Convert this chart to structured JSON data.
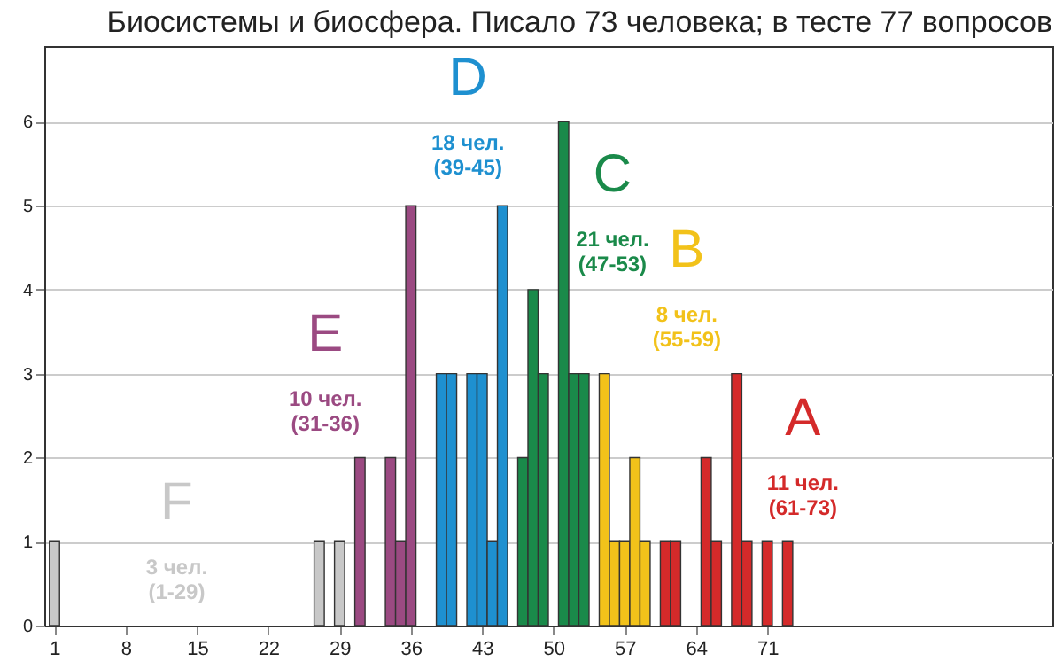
{
  "chart_data": {
    "type": "bar",
    "title": "Биосистемы и биосфера. Писало 73 человека; в тесте 77 вопросов",
    "series": [
      {
        "name": "F",
        "color": "#c8c8c8",
        "x": [
          1,
          27,
          29
        ],
        "values": [
          1,
          1,
          1
        ]
      },
      {
        "name": "E",
        "color": "#9b4a82",
        "x": [
          31,
          34,
          35,
          36
        ],
        "values": [
          2,
          2,
          1,
          5
        ]
      },
      {
        "name": "D",
        "color": "#1e90d0",
        "x": [
          39,
          40,
          42,
          43,
          44,
          45
        ],
        "values": [
          3,
          3,
          3,
          3,
          1,
          5
        ]
      },
      {
        "name": "C",
        "color": "#1a8a4a",
        "x": [
          47,
          48,
          49,
          51,
          52,
          53
        ],
        "values": [
          2,
          4,
          3,
          6,
          3,
          3
        ]
      },
      {
        "name": "B",
        "color": "#f2c21a",
        "x": [
          55,
          56,
          57,
          58,
          59
        ],
        "values": [
          3,
          1,
          1,
          2,
          1
        ]
      },
      {
        "name": "A",
        "color": "#d42a2a",
        "x": [
          61,
          62,
          65,
          66,
          68,
          69,
          71,
          73
        ],
        "values": [
          1,
          1,
          2,
          1,
          3,
          1,
          1,
          1
        ]
      }
    ],
    "annotations": [
      "3 чел.\n(1-29)",
      "10 чел.\n(31-36)",
      "18 чел.\n(39-45)",
      "21 чел.\n(47-53)",
      "8 чел.\n(55-59)",
      "11 чел.\n(61-73)"
    ],
    "xlim": [
      0,
      99
    ],
    "xticks": [
      1,
      8,
      15,
      22,
      29,
      36,
      43,
      50,
      57,
      64,
      71
    ],
    "ylim": [
      0,
      6.9
    ],
    "yticks": [
      0,
      1,
      2,
      3,
      4,
      5,
      6
    ],
    "grid": "y"
  }
}
